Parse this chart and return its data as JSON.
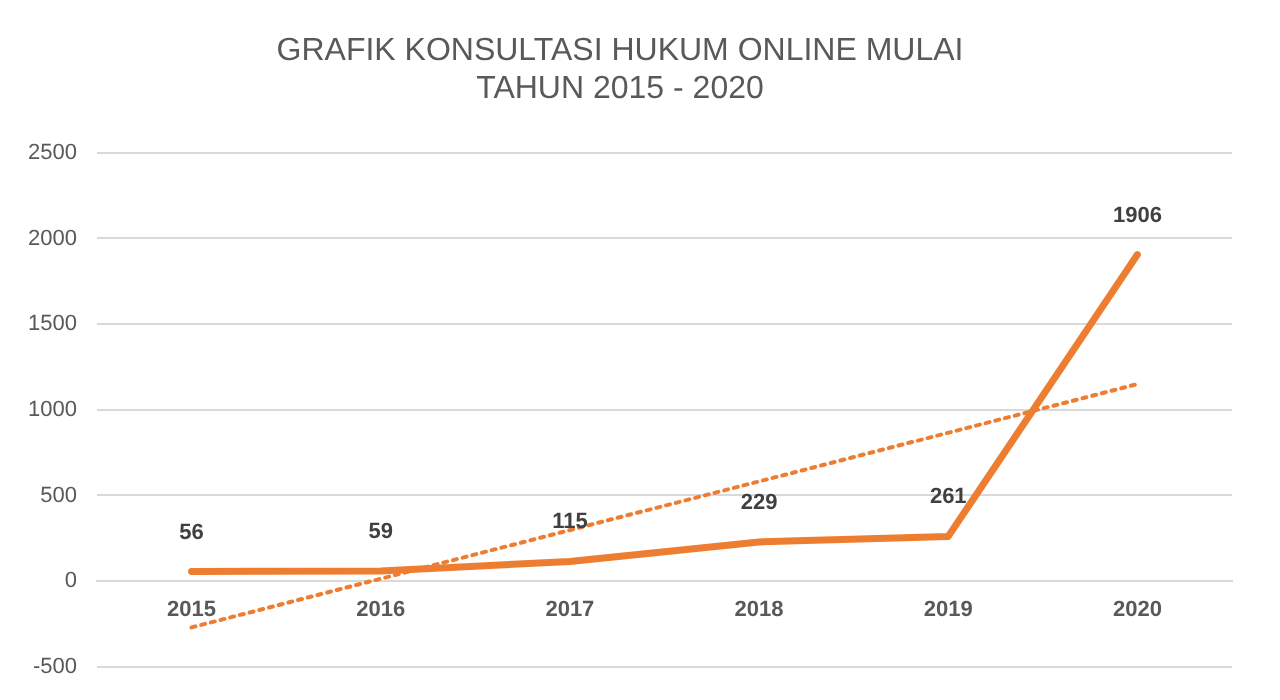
{
  "chart_data": {
    "type": "line",
    "title": "GRAFIK KONSULTASI HUKUM ONLINE MULAI\nTAHUN 2015 - 2020",
    "categories": [
      "2015",
      "2016",
      "2017",
      "2018",
      "2019",
      "2020"
    ],
    "series": [
      {
        "color": "#ed7d31",
        "values": [
          56,
          59,
          115,
          229,
          261,
          1906
        ],
        "value_labels": [
          "56",
          "59",
          "115",
          "229",
          "261",
          "1906"
        ]
      },
      {
        "type": "line",
        "color": "#ed7d31",
        "line_style": "dotted",
        "values": [
          -270,
          null,
          null,
          null,
          null,
          1150
        ]
      }
    ],
    "ylim": [
      -500,
      2500
    ],
    "yticks": [
      -500,
      0,
      500,
      1000,
      1500,
      2000,
      2500
    ],
    "grid": "y",
    "marker": "none",
    "line_style": "solid"
  }
}
